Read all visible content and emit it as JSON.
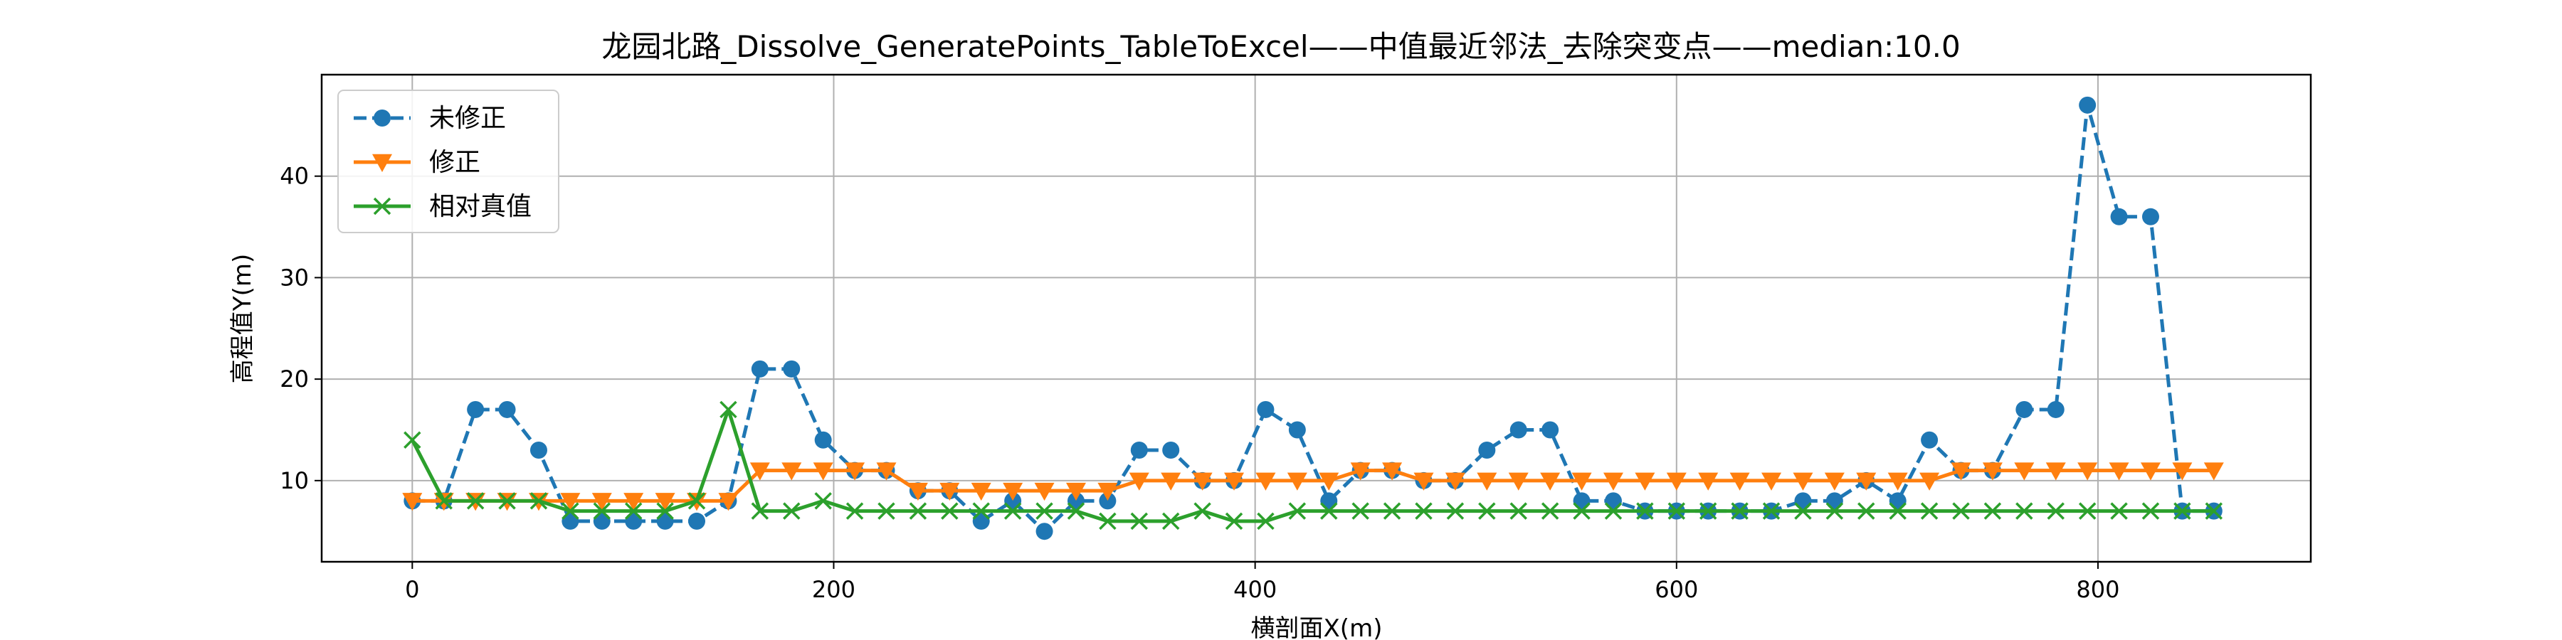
{
  "chart_data": {
    "type": "line",
    "title": "龙园北路_Dissolve_GeneratePoints_TableToExcel——中值最近邻法_去除突变点——median:10.0",
    "xlabel": "横剖面X(m)",
    "ylabel": "高程值Y(m)",
    "xlim": [
      -43,
      901
    ],
    "ylim": [
      2.0,
      50.0
    ],
    "xticks": [
      0,
      200,
      400,
      600,
      800
    ],
    "yticks": [
      10,
      20,
      30,
      40
    ],
    "grid": true,
    "legend_position": "top-left",
    "x": [
      0,
      15,
      30,
      45,
      60,
      75,
      90,
      105,
      120,
      135,
      150,
      165,
      180,
      195,
      210,
      225,
      240,
      255,
      270,
      285,
      300,
      315,
      330,
      345,
      360,
      375,
      390,
      405,
      420,
      435,
      450,
      465,
      480,
      495,
      510,
      525,
      540,
      555,
      570,
      585,
      600,
      615,
      630,
      645,
      660,
      675,
      690,
      705,
      720,
      735,
      750,
      765,
      780,
      795,
      810,
      825,
      840,
      855
    ],
    "series": [
      {
        "name": "未修正",
        "color": "#1f77b4",
        "line_style": "dashed",
        "marker": "circle",
        "values": [
          8,
          8,
          17,
          17,
          13,
          6,
          6,
          6,
          6,
          6,
          8,
          21,
          21,
          14,
          11,
          11,
          9,
          9,
          6,
          8,
          5,
          8,
          8,
          13,
          13,
          10,
          10,
          17,
          15,
          8,
          11,
          11,
          10,
          10,
          13,
          15,
          15,
          8,
          8,
          7,
          7,
          7,
          7,
          7,
          8,
          8,
          10,
          8,
          14,
          11,
          11,
          17,
          17,
          47,
          36,
          36,
          7,
          7
        ]
      },
      {
        "name": "修正",
        "color": "#ff7f0e",
        "line_style": "solid",
        "marker": "triangle-down",
        "values": [
          8,
          8,
          8,
          8,
          8,
          8,
          8,
          8,
          8,
          8,
          8,
          11,
          11,
          11,
          11,
          11,
          9,
          9,
          9,
          9,
          9,
          9,
          9,
          10,
          10,
          10,
          10,
          10,
          10,
          10,
          11,
          11,
          10,
          10,
          10,
          10,
          10,
          10,
          10,
          10,
          10,
          10,
          10,
          10,
          10,
          10,
          10,
          10,
          10,
          11,
          11,
          11,
          11,
          11,
          11,
          11,
          11,
          11
        ]
      },
      {
        "name": "相对真值",
        "color": "#2ca02c",
        "line_style": "solid",
        "marker": "x",
        "values": [
          14,
          8,
          8,
          8,
          8,
          7,
          7,
          7,
          7,
          8,
          17,
          7,
          7,
          8,
          7,
          7,
          7,
          7,
          7,
          7,
          7,
          7,
          6,
          6,
          6,
          7,
          6,
          6,
          7,
          7,
          7,
          7,
          7,
          7,
          7,
          7,
          7,
          7,
          7,
          7,
          7,
          7,
          7,
          7,
          7,
          7,
          7,
          7,
          7,
          7,
          7,
          7,
          7,
          7,
          7,
          7,
          7,
          7
        ]
      }
    ]
  }
}
